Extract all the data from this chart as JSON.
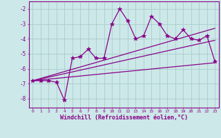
{
  "bg_color": "#cce8e8",
  "grid_color": "#aacccc",
  "line_color": "#880088",
  "xlabel": "Windchill (Refroidissement éolien,°C)",
  "xlim": [
    -0.5,
    23.5
  ],
  "ylim": [
    -8.6,
    -1.5
  ],
  "xticks": [
    0,
    1,
    2,
    3,
    4,
    5,
    6,
    7,
    8,
    9,
    10,
    11,
    12,
    13,
    14,
    15,
    16,
    17,
    18,
    19,
    20,
    21,
    22,
    23
  ],
  "yticks": [
    -8,
    -7,
    -6,
    -5,
    -4,
    -3,
    -2
  ],
  "jagged_x": [
    0,
    1,
    2,
    3,
    4,
    5,
    6,
    7,
    8,
    9,
    10,
    11,
    12,
    13,
    14,
    15,
    16,
    17,
    18,
    19,
    20,
    21,
    22,
    23
  ],
  "jagged_y": [
    -6.8,
    -6.8,
    -6.8,
    -6.9,
    -8.1,
    -5.3,
    -5.2,
    -4.7,
    -5.3,
    -5.3,
    -3.0,
    -2.0,
    -2.8,
    -4.0,
    -3.8,
    -2.5,
    -3.0,
    -3.8,
    -4.0,
    -3.4,
    -4.0,
    -4.1,
    -3.8,
    -5.5
  ],
  "line1_x": [
    0,
    23
  ],
  "line1_y": [
    -6.8,
    -5.6
  ],
  "line2_x": [
    0,
    23
  ],
  "line2_y": [
    -6.8,
    -4.1
  ],
  "line3_x": [
    0,
    23
  ],
  "line3_y": [
    -6.8,
    -3.3
  ]
}
